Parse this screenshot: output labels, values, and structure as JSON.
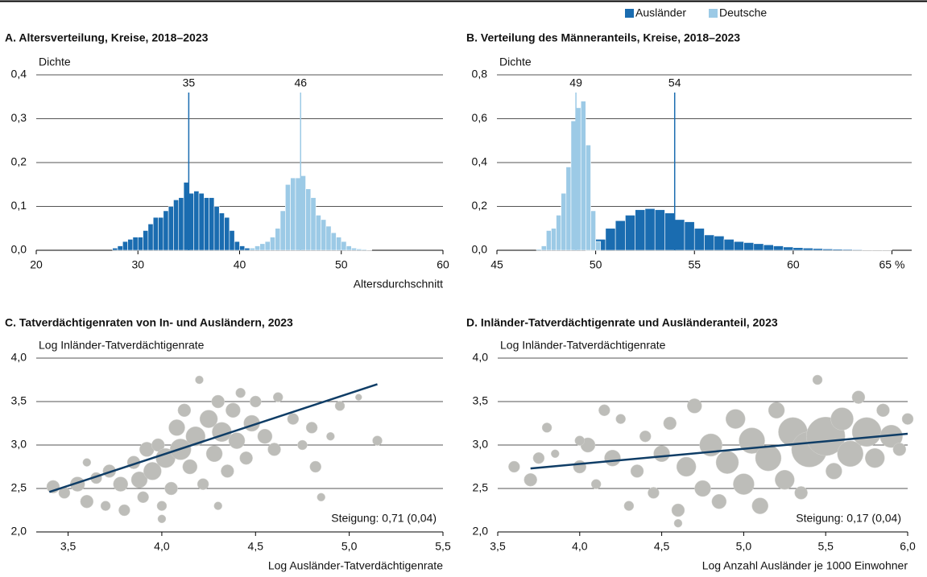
{
  "legend": [
    "Ausländer",
    "Deutsche"
  ],
  "chart_data": [
    {
      "type": "histogram",
      "title": "A. Altersverteilung, Kreise, 2018–2023",
      "ylabel": "Dichte",
      "xlabel": "Altersdurchschnitt",
      "xlim": [
        20,
        60
      ],
      "xticks": [
        20,
        30,
        40,
        50,
        60
      ],
      "ylim": [
        0,
        0.4
      ],
      "yticks": [
        {
          "value": 0,
          "label": "0,0"
        },
        {
          "value": 0.1,
          "label": "0,1"
        },
        {
          "value": 0.2,
          "label": "0,2"
        },
        {
          "value": 0.3,
          "label": "0,3"
        },
        {
          "value": 0.4,
          "label": "0,4"
        }
      ],
      "grid": true,
      "series": [
        {
          "color": "#1a6cb0",
          "mean": 35,
          "bins": [
            27.5,
            28,
            28.5,
            29,
            29.5,
            30,
            30.5,
            31,
            31.5,
            32,
            32.5,
            33,
            33.5,
            34,
            34.5,
            35,
            35.5,
            36,
            36.5,
            37,
            37.5,
            38,
            38.5,
            39,
            39.5,
            40,
            40.5,
            41
          ],
          "values": [
            0.005,
            0.01,
            0.02,
            0.025,
            0.03,
            0.03,
            0.045,
            0.06,
            0.075,
            0.075,
            0.09,
            0.1,
            0.115,
            0.12,
            0.155,
            0.13,
            0.135,
            0.13,
            0.12,
            0.12,
            0.1,
            0.085,
            0.075,
            0.045,
            0.02,
            0.01,
            0.005
          ]
        },
        {
          "color": "#9ccae6",
          "mean": 46,
          "bins": [
            41,
            41.5,
            42,
            42.5,
            43,
            43.5,
            44,
            44.5,
            45,
            45.5,
            46,
            46.5,
            47,
            47.5,
            48,
            48.5,
            49,
            49.5,
            50,
            50.5,
            51,
            51.5,
            52,
            52.5,
            53
          ],
          "values": [
            0.005,
            0.01,
            0.015,
            0.02,
            0.03,
            0.05,
            0.09,
            0.15,
            0.165,
            0.165,
            0.17,
            0.14,
            0.12,
            0.08,
            0.07,
            0.055,
            0.04,
            0.03,
            0.02,
            0.01,
            0.005,
            0.003,
            0.002,
            0.001
          ]
        }
      ]
    },
    {
      "type": "histogram",
      "title": "B. Verteilung des Männeranteils, Kreise, 2018–2023",
      "ylabel": "Dichte",
      "xlim": [
        45,
        66
      ],
      "xticks": [
        45,
        50,
        55,
        60,
        {
          "value": 65,
          "label": "65 %"
        }
      ],
      "ylim": [
        0,
        0.8
      ],
      "yticks": [
        {
          "value": 0,
          "label": "0,0"
        },
        {
          "value": 0.2,
          "label": "0,2"
        },
        {
          "value": 0.4,
          "label": "0,4"
        },
        {
          "value": 0.6,
          "label": "0,6"
        },
        {
          "value": 0.8,
          "label": "0,8"
        }
      ],
      "grid": true,
      "series": [
        {
          "color": "#1a6cb0",
          "mean": 54,
          "bins": [
            49.5,
            50,
            50.5,
            51,
            51.5,
            52,
            52.5,
            53,
            53.5,
            54,
            54.5,
            55,
            55.5,
            56,
            56.5,
            57,
            57.5,
            58,
            58.5,
            59,
            59.5,
            60,
            60.5,
            61,
            61.5,
            62,
            62.5,
            63,
            63.5,
            64,
            64.5,
            65
          ],
          "values": [
            0.02,
            0.05,
            0.1,
            0.135,
            0.16,
            0.185,
            0.19,
            0.185,
            0.17,
            0.14,
            0.13,
            0.1,
            0.07,
            0.065,
            0.05,
            0.04,
            0.035,
            0.03,
            0.025,
            0.02,
            0.015,
            0.012,
            0.01,
            0.008,
            0.006,
            0.005,
            0.004,
            0.003,
            0.002,
            0.002,
            0.001
          ]
        },
        {
          "color": "#9ccae6",
          "mean": 49,
          "bins": [
            47,
            47.25,
            47.5,
            47.75,
            48,
            48.25,
            48.5,
            48.75,
            49,
            49.25,
            49.5,
            49.75,
            50,
            50.25
          ],
          "values": [
            0.005,
            0.02,
            0.09,
            0.1,
            0.16,
            0.26,
            0.38,
            0.59,
            0.65,
            0.68,
            0.48,
            0.18,
            0.04
          ]
        }
      ]
    },
    {
      "type": "scatter",
      "title": "C. Tatverdächtigenraten von In- und Ausländern, 2023",
      "ylabel": "Log Inländer-Tatverdächtigenrate",
      "xlabel": "Log Ausländer-Tatverdächtigenrate",
      "xlim": [
        3.33,
        5.5
      ],
      "xticks": [
        {
          "value": 3.5,
          "label": "3,5"
        },
        {
          "value": 4.0,
          "label": "4,0"
        },
        {
          "value": 4.5,
          "label": "4,5"
        },
        {
          "value": 5.0,
          "label": "5,0"
        },
        {
          "value": 5.5,
          "label": "5,5"
        }
      ],
      "ylim": [
        2.0,
        4.0
      ],
      "yticks": [
        {
          "value": 2.0,
          "label": "2,0"
        },
        {
          "value": 2.5,
          "label": "2,5"
        },
        {
          "value": 3.0,
          "label": "3,0"
        },
        {
          "value": 3.5,
          "label": "3,5"
        },
        {
          "value": 4.0,
          "label": "4,0"
        }
      ],
      "grid": true,
      "color": "#bdbdb9",
      "trend_color": "#0f3d66",
      "annotation": "Steigung: 0,71 (0,04)",
      "x": [
        3.42,
        3.48,
        3.55,
        3.6,
        3.65,
        3.7,
        3.72,
        3.78,
        3.8,
        3.85,
        3.88,
        3.9,
        3.92,
        3.95,
        3.98,
        4.0,
        4.02,
        4.05,
        4.08,
        4.1,
        4.12,
        4.15,
        4.18,
        4.2,
        4.22,
        4.25,
        4.28,
        4.3,
        4.32,
        4.35,
        4.38,
        4.4,
        4.42,
        4.45,
        4.48,
        4.5,
        4.55,
        4.6,
        4.62,
        4.7,
        4.75,
        4.8,
        4.82,
        4.85,
        4.9,
        4.95,
        5.05,
        5.15,
        3.6,
        4.0,
        4.3
      ],
      "y": [
        2.52,
        2.45,
        2.55,
        2.35,
        2.62,
        2.3,
        2.7,
        2.55,
        2.25,
        2.8,
        2.6,
        2.4,
        2.95,
        2.7,
        3.0,
        2.15,
        2.85,
        2.5,
        3.2,
        2.95,
        3.4,
        2.75,
        3.1,
        3.75,
        2.55,
        3.3,
        2.9,
        3.5,
        3.15,
        2.7,
        3.4,
        3.05,
        3.6,
        2.85,
        3.25,
        3.5,
        3.1,
        2.95,
        3.55,
        3.3,
        3.0,
        3.2,
        2.75,
        2.4,
        3.1,
        3.45,
        3.55,
        3.05,
        2.8,
        2.3,
        2.3
      ],
      "sizes": [
        8,
        7,
        9,
        8,
        7,
        6,
        8,
        9,
        7,
        8,
        10,
        7,
        9,
        11,
        8,
        5,
        12,
        8,
        10,
        13,
        8,
        9,
        12,
        5,
        7,
        11,
        10,
        8,
        12,
        8,
        9,
        10,
        6,
        8,
        10,
        7,
        9,
        8,
        6,
        7,
        6,
        7,
        7,
        5,
        5,
        6,
        4,
        6,
        5,
        6,
        5
      ],
      "trend": {
        "x": [
          3.4,
          5.15
        ],
        "y": [
          2.46,
          3.7
        ]
      }
    },
    {
      "type": "scatter",
      "title": "D. Inländer-Tatverdächtigenrate und Ausländeranteil, 2023",
      "ylabel": "Log Inländer-Tatverdächtigenrate",
      "xlabel": "Log Anzahl Ausländer je 1000 Einwohner",
      "xlim": [
        3.5,
        6.0
      ],
      "xticks": [
        {
          "value": 3.5,
          "label": "3,5"
        },
        {
          "value": 4.0,
          "label": "4,0"
        },
        {
          "value": 4.5,
          "label": "4,5"
        },
        {
          "value": 5.0,
          "label": "5,0"
        },
        {
          "value": 5.5,
          "label": "5,5"
        },
        {
          "value": 6.0,
          "label": "6,0"
        }
      ],
      "ylim": [
        2.0,
        4.0
      ],
      "yticks": [
        {
          "value": 2.0,
          "label": "2,0"
        },
        {
          "value": 2.5,
          "label": "2,5"
        },
        {
          "value": 3.0,
          "label": "3,0"
        },
        {
          "value": 3.5,
          "label": "3,5"
        },
        {
          "value": 4.0,
          "label": "4,0"
        }
      ],
      "grid": true,
      "color": "#bdbdb9",
      "trend_color": "#0f3d66",
      "annotation": "Steigung: 0,17 (0,04)",
      "x": [
        3.7,
        3.75,
        3.8,
        3.85,
        4.0,
        4.05,
        4.1,
        4.15,
        4.2,
        4.25,
        4.3,
        4.35,
        4.4,
        4.45,
        4.5,
        4.55,
        4.6,
        4.65,
        4.7,
        4.75,
        4.8,
        4.85,
        4.9,
        4.95,
        5.0,
        5.05,
        5.1,
        5.15,
        5.2,
        5.25,
        5.3,
        5.35,
        5.4,
        5.45,
        5.5,
        5.55,
        5.6,
        5.65,
        5.7,
        5.75,
        5.8,
        5.85,
        5.9,
        5.95,
        6.0,
        4.6,
        4.0,
        3.6
      ],
      "y": [
        2.6,
        2.85,
        3.2,
        2.9,
        2.75,
        3.0,
        2.55,
        3.4,
        2.85,
        3.3,
        2.3,
        2.7,
        3.1,
        2.45,
        2.9,
        3.25,
        2.25,
        2.75,
        3.45,
        2.5,
        3.0,
        2.35,
        2.8,
        3.3,
        2.55,
        3.05,
        2.3,
        2.85,
        3.4,
        2.6,
        3.15,
        2.45,
        2.95,
        3.75,
        3.1,
        2.7,
        3.3,
        2.9,
        3.55,
        3.15,
        2.85,
        3.4,
        3.1,
        2.95,
        3.3,
        2.1,
        3.05,
        2.75
      ],
      "sizes": [
        8,
        7,
        6,
        5,
        8,
        9,
        6,
        7,
        10,
        6,
        6,
        8,
        7,
        7,
        10,
        8,
        8,
        12,
        9,
        10,
        14,
        9,
        14,
        12,
        13,
        16,
        10,
        16,
        10,
        12,
        18,
        8,
        22,
        6,
        24,
        10,
        14,
        16,
        8,
        18,
        12,
        8,
        14,
        8,
        7,
        5,
        6,
        7
      ],
      "trend": {
        "x": [
          3.7,
          6.0
        ],
        "y": [
          2.73,
          3.13
        ]
      }
    }
  ]
}
